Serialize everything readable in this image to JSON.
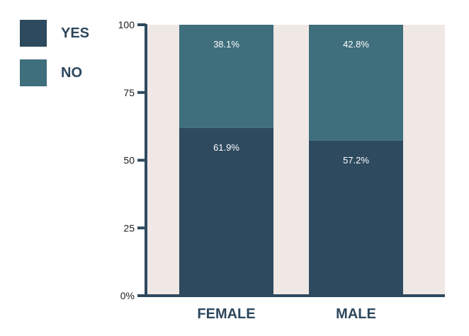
{
  "chart_data": {
    "type": "bar",
    "stacked": true,
    "categories": [
      "FEMALE",
      "MALE"
    ],
    "series": [
      {
        "name": "YES",
        "values": [
          61.9,
          57.2
        ],
        "labels": [
          "61.9%",
          "57.2%"
        ],
        "color": "#2e4a5f"
      },
      {
        "name": "NO",
        "values": [
          38.1,
          42.8
        ],
        "labels": [
          "38.1%",
          "42.8%"
        ],
        "color": "#3f6e7c"
      }
    ],
    "ylim": [
      0,
      100
    ],
    "yticks": [
      0,
      25,
      50,
      75,
      100
    ],
    "ytick_labels": [
      "0%",
      "25",
      "50",
      "75",
      "100"
    ],
    "legend": "top-left",
    "grid": false,
    "plot_background": "#efe8e4",
    "axis_color": "#2e4a5f",
    "label_color": "#2e475c"
  }
}
